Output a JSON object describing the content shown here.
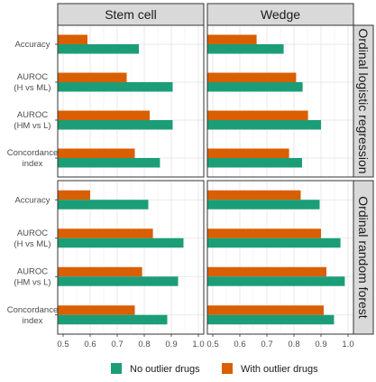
{
  "chart_data": {
    "type": "bar",
    "orientation": "horizontal",
    "columns": [
      "Stem cell",
      "Wedge"
    ],
    "rows": [
      "Ordinal logistic regression",
      "Ordinal random forest"
    ],
    "categories": [
      {
        "line1": "Accuracy",
        "line2": ""
      },
      {
        "line1": "AUROC",
        "line2": "(H vs ML)"
      },
      {
        "line1": "AUROC",
        "line2": "(HM vs L)"
      },
      {
        "line1": "Concordance",
        "line2": "index"
      }
    ],
    "xlim": [
      0.48,
      1.02
    ],
    "xticks": [
      "0.5",
      "0.6",
      "0.7",
      "0.8",
      "0.9",
      "1.0"
    ],
    "grid": true,
    "legend_position": "bottom",
    "series": [
      {
        "name": "No outlier drugs",
        "color": "#1b9e77"
      },
      {
        "name": "With outlier drugs",
        "color": "#d95f02"
      }
    ],
    "panels": [
      {
        "row": 0,
        "col": 0,
        "no_outlier": [
          0.78,
          0.905,
          0.905,
          0.858
        ],
        "with_outlier": [
          0.59,
          0.735,
          0.82,
          0.765
        ]
      },
      {
        "row": 0,
        "col": 1,
        "no_outlier": [
          0.762,
          0.832,
          0.9,
          0.83
        ],
        "with_outlier": [
          0.662,
          0.808,
          0.852,
          0.782
        ]
      },
      {
        "row": 1,
        "col": 0,
        "no_outlier": [
          0.815,
          0.945,
          0.925,
          0.885
        ],
        "with_outlier": [
          0.6,
          0.832,
          0.792,
          0.765
        ]
      },
      {
        "row": 1,
        "col": 1,
        "no_outlier": [
          0.895,
          0.972,
          0.988,
          0.948
        ],
        "with_outlier": [
          0.825,
          0.9,
          0.92,
          0.91
        ]
      }
    ]
  }
}
